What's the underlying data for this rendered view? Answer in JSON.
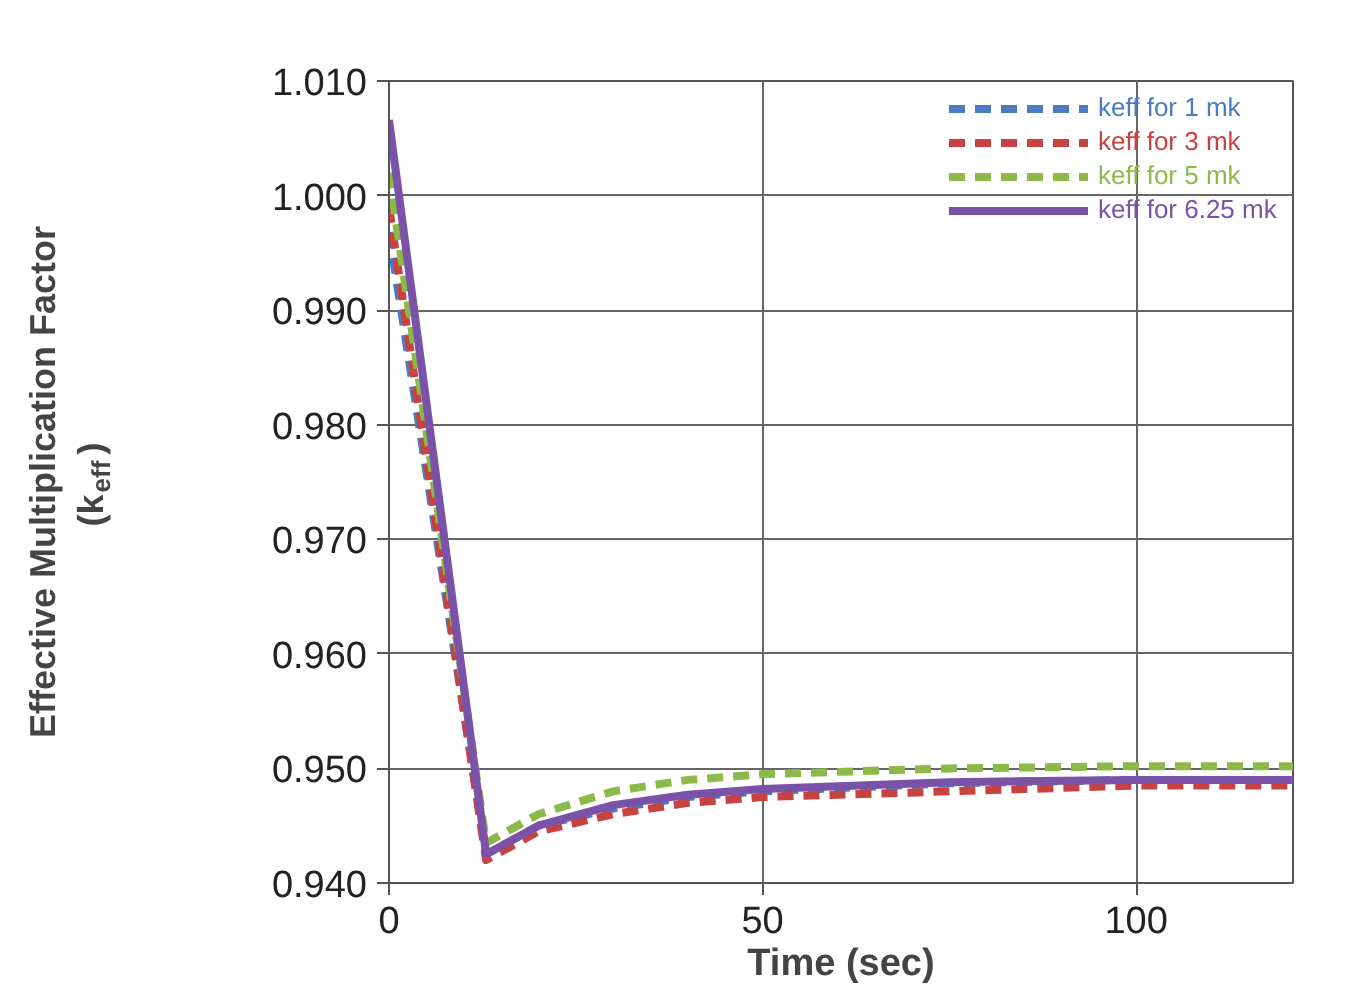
{
  "chart_data": {
    "type": "line",
    "xlabel": "Time (sec)",
    "ylabel": "Effective Multiplication Factor (k$_{eff}$)",
    "xlim": [
      0,
      121
    ],
    "ylim": [
      0.94,
      1.01
    ],
    "xticks": [
      0,
      50,
      100
    ],
    "yticks": [
      {
        "value": 0.94,
        "label": "0.940"
      },
      {
        "value": 0.95,
        "label": "0.950"
      },
      {
        "value": 0.96,
        "label": "0.960"
      },
      {
        "value": 0.97,
        "label": "0.970"
      },
      {
        "value": 0.98,
        "label": "0.980"
      },
      {
        "value": 0.99,
        "label": "0.990"
      },
      {
        "value": 1.0,
        "label": "1.000"
      },
      {
        "value": 1.01,
        "label": "1.010"
      }
    ],
    "grid": true,
    "legend": "top right",
    "series": [
      {
        "name": "keff for 1 mk",
        "color": "#4a7cc4",
        "line_style": "dashed",
        "x": [
          0,
          13,
          20,
          30,
          40,
          50,
          75,
          100,
          121
        ],
        "values": [
          0.9968,
          0.9425,
          0.945,
          0.9465,
          0.9475,
          0.948,
          0.9487,
          0.949,
          0.949
        ]
      },
      {
        "name": "keff for 3 mk",
        "color": "#c8423f",
        "line_style": "dashed",
        "x": [
          0,
          13,
          20,
          30,
          40,
          50,
          75,
          100,
          121
        ],
        "values": [
          0.999,
          0.942,
          0.9445,
          0.946,
          0.947,
          0.9475,
          0.948,
          0.9485,
          0.9485
        ]
      },
      {
        "name": "keff for 5 mk",
        "color": "#8cba48",
        "line_style": "dashed",
        "x": [
          0,
          13,
          20,
          30,
          40,
          50,
          75,
          100,
          121
        ],
        "values": [
          1.002,
          0.9435,
          0.946,
          0.948,
          0.949,
          0.9495,
          0.95,
          0.9502,
          0.9502
        ]
      },
      {
        "name": "keff for 6.25 mk",
        "color": "#7a52a8",
        "line_style": "solid",
        "x": [
          0,
          13,
          20,
          30,
          40,
          50,
          75,
          100,
          121
        ],
        "values": [
          1.0066,
          0.9425,
          0.945,
          0.9468,
          0.9477,
          0.9482,
          0.9488,
          0.949,
          0.949
        ]
      }
    ]
  }
}
